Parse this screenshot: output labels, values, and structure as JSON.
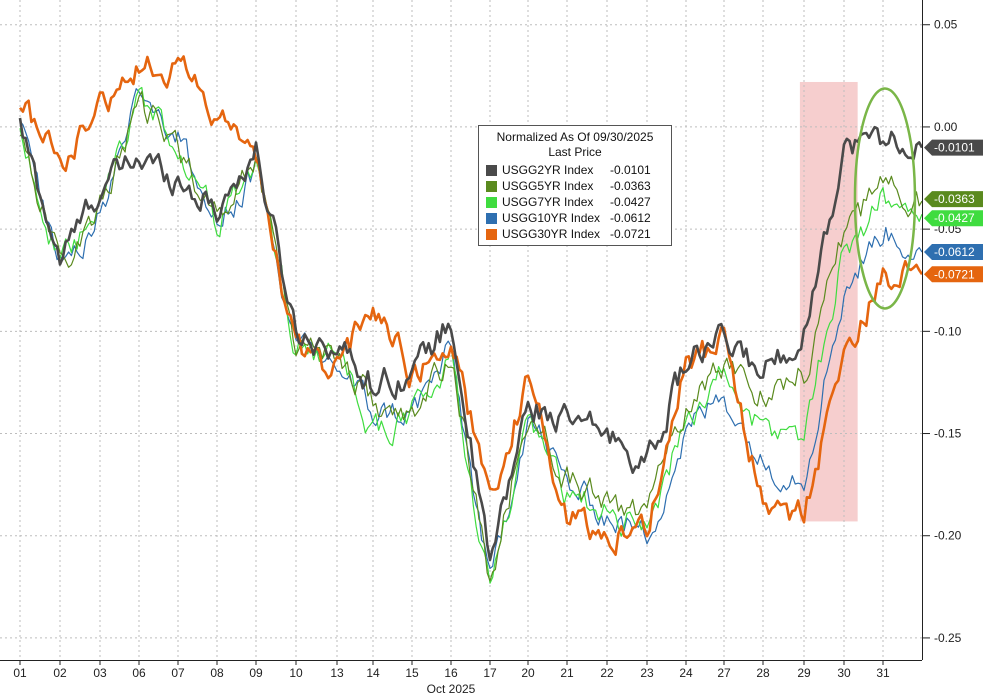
{
  "chart_data": {
    "type": "line",
    "xlabel": "Oct 2025",
    "x_ticks": [
      "01",
      "02",
      "03",
      "06",
      "07",
      "08",
      "09",
      "10",
      "13",
      "14",
      "15",
      "16",
      "17",
      "20",
      "21",
      "22",
      "23",
      "24",
      "27",
      "28",
      "29",
      "30",
      "31"
    ],
    "y_ticks": [
      "0.05",
      "0.00",
      "-0.05",
      "-0.10",
      "-0.15",
      "-0.20",
      "-0.25"
    ],
    "y_tick_values": [
      0.05,
      0.0,
      -0.05,
      -0.1,
      -0.15,
      -0.2,
      -0.25
    ],
    "ylim": [
      -0.265,
      0.06
    ],
    "grid": true,
    "legend": {
      "title": "Normalized As Of 09/30/2025",
      "subtitle": "Last Price",
      "placement": "top-center"
    },
    "highlight": {
      "x_start": 19.9,
      "x_end": 21.35,
      "y_top": 0.022,
      "y_bottom": -0.193,
      "color": "#f4c6c6"
    },
    "circle_annotation": {
      "x": 22.05,
      "y": -0.035,
      "color": "#7ab648"
    },
    "series": [
      {
        "name": "USGG2YR Index",
        "last": "-0.0101",
        "last_value": -0.0101,
        "color": "#4a4a4a",
        "values": [
          0.0,
          -0.065,
          -0.03,
          -0.015,
          -0.025,
          -0.04,
          -0.012,
          -0.1,
          -0.107,
          -0.125,
          -0.12,
          -0.095,
          -0.215,
          -0.135,
          -0.145,
          -0.15,
          -0.165,
          -0.115,
          -0.105,
          -0.12,
          -0.1,
          -0.01,
          -0.005,
          -0.0101
        ]
      },
      {
        "name": "USGG5YR Index",
        "last": "-0.0363",
        "last_value": -0.0363,
        "color": "#5a8a1e",
        "values": [
          0.0,
          -0.068,
          -0.04,
          0.01,
          -0.01,
          -0.045,
          -0.015,
          -0.105,
          -0.11,
          -0.135,
          -0.145,
          -0.11,
          -0.225,
          -0.14,
          -0.17,
          -0.185,
          -0.19,
          -0.135,
          -0.115,
          -0.13,
          -0.12,
          -0.05,
          -0.03,
          -0.0363
        ]
      },
      {
        "name": "USGG7YR Index",
        "last": "-0.0427",
        "last_value": -0.0427,
        "color": "#3fdc3f",
        "values": [
          0.0,
          -0.07,
          -0.042,
          0.015,
          -0.008,
          -0.048,
          -0.018,
          -0.108,
          -0.113,
          -0.15,
          -0.14,
          -0.115,
          -0.228,
          -0.148,
          -0.18,
          -0.19,
          -0.195,
          -0.145,
          -0.12,
          -0.15,
          -0.15,
          -0.06,
          -0.035,
          -0.0427
        ]
      },
      {
        "name": "USGG10YR Index",
        "last": "-0.0612",
        "last_value": -0.0612,
        "color": "#2e6fb0",
        "values": [
          0.0,
          -0.065,
          -0.045,
          0.02,
          -0.005,
          -0.05,
          -0.02,
          -0.11,
          -0.116,
          -0.14,
          -0.14,
          -0.11,
          -0.225,
          -0.14,
          -0.175,
          -0.19,
          -0.2,
          -0.15,
          -0.13,
          -0.165,
          -0.17,
          -0.08,
          -0.05,
          -0.0612
        ]
      },
      {
        "name": "USGG30YR Index",
        "last": "-0.0721",
        "last_value": -0.0721,
        "color": "#e5650f",
        "values": [
          0.015,
          -0.02,
          0.01,
          0.03,
          0.03,
          0.005,
          -0.015,
          -0.11,
          -0.12,
          -0.085,
          -0.12,
          -0.105,
          -0.18,
          -0.125,
          -0.19,
          -0.2,
          -0.195,
          -0.115,
          -0.105,
          -0.185,
          -0.19,
          -0.11,
          -0.075,
          -0.0721
        ]
      }
    ]
  }
}
